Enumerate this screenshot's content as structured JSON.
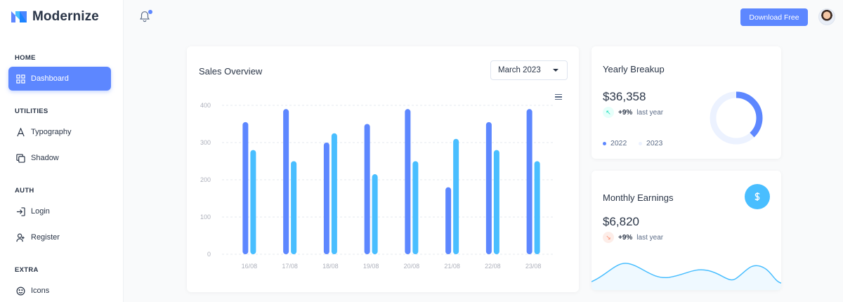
{
  "app": {
    "name": "Modernize"
  },
  "sidebar": {
    "sections": [
      {
        "label": "HOME"
      },
      {
        "label": "UTILITIES"
      },
      {
        "label": "AUTH"
      },
      {
        "label": "EXTRA"
      }
    ],
    "items": [
      {
        "label": "Dashboard",
        "icon": "dashboard-icon",
        "active": true
      },
      {
        "label": "Typography",
        "icon": "typography-icon"
      },
      {
        "label": "Shadow",
        "icon": "copy-icon"
      },
      {
        "label": "Login",
        "icon": "login-icon"
      },
      {
        "label": "Register",
        "icon": "user-plus-icon"
      },
      {
        "label": "Icons",
        "icon": "mood-smile-icon"
      }
    ]
  },
  "header": {
    "download_label": "Download Free"
  },
  "sales": {
    "title": "Sales Overview",
    "select_value": "March 2023"
  },
  "chart_data": {
    "type": "bar",
    "categories": [
      "16/08",
      "17/08",
      "18/08",
      "19/08",
      "20/08",
      "21/08",
      "22/08",
      "23/08"
    ],
    "series": [
      {
        "values": [
          355,
          390,
          300,
          350,
          390,
          180,
          355,
          390
        ],
        "color": "#5d87ff"
      },
      {
        "values": [
          280,
          250,
          325,
          215,
          250,
          310,
          280,
          250
        ],
        "color": "#49beff"
      }
    ],
    "yticks": [
      0,
      100,
      200,
      300,
      400
    ],
    "ylim": [
      0,
      400
    ],
    "grid": true
  },
  "yearly": {
    "title": "Yearly Breakup",
    "value": "$36,358",
    "trend_pct": "+9%",
    "trend_label": "last year",
    "legend": [
      "2022",
      "2023"
    ],
    "donut_fraction": 0.38,
    "colors": {
      "primary": "#5d87ff",
      "light": "#ecf2ff",
      "trend_bg": "#e6fffa",
      "trend_fg": "#13deb9"
    }
  },
  "monthly": {
    "title": "Monthly Earnings",
    "value": "$6,820",
    "trend_pct": "+9%",
    "trend_label": "last year",
    "colors": {
      "trend_bg": "#fdede8",
      "trend_fg": "#fa896b",
      "line": "#49beff"
    }
  }
}
